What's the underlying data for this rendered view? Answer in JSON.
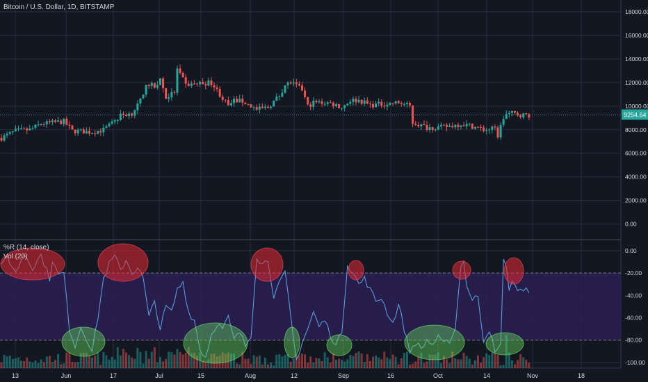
{
  "header": {
    "symbol": "Bitcoin / U.S. Dollar, 1D, BITSTAMP",
    "indicator_wr": "%R (14, close)",
    "indicator_vol": "Vol (20)"
  },
  "colors": {
    "background": "#131722",
    "grid": "#2a2e39",
    "up": "#26a69a",
    "down": "#ef5350",
    "wr_line": "#5b9bd5",
    "band_fill": "#2a1f52",
    "last_price_bg": "#26a69a",
    "axis_text": "#d1d4dc"
  },
  "chart_data": [
    {
      "type": "candlestick",
      "title": "Bitcoin / U.S. Dollar, 1D, BITSTAMP",
      "x_labels": [
        "13",
        "Jun",
        "17",
        "Jul",
        "15",
        "Aug",
        "12",
        "Sep",
        "16",
        "Oct",
        "14",
        "Nov",
        "18"
      ],
      "y_ticks": [
        0,
        2000,
        4000,
        6000,
        8000,
        10000,
        12000,
        14000,
        16000,
        18000
      ],
      "y_tick_labels": [
        "0.00",
        "2000.00",
        "4000.00",
        "6000.00",
        "8000.00",
        "10000.00",
        "12000.00",
        "14000.00",
        "16000.00",
        "18000.00"
      ],
      "ylim": [
        -1200,
        19000
      ],
      "last_price": 9254.64,
      "last_price_label": "9254.64",
      "grid": true,
      "close_keypoints": [
        [
          0,
          7300
        ],
        [
          5,
          7900
        ],
        [
          10,
          8000
        ],
        [
          14,
          8500
        ],
        [
          18,
          8600
        ],
        [
          22,
          8700
        ],
        [
          25,
          7900
        ],
        [
          32,
          7800
        ],
        [
          36,
          8000
        ],
        [
          40,
          8700
        ],
        [
          42,
          9200
        ],
        [
          46,
          9400
        ],
        [
          50,
          10800
        ],
        [
          51,
          12000
        ],
        [
          54,
          11600
        ],
        [
          56,
          12300
        ],
        [
          58,
          10700
        ],
        [
          61,
          11200
        ],
        [
          62,
          13100
        ],
        [
          65,
          11800
        ],
        [
          69,
          11900
        ],
        [
          74,
          12000
        ],
        [
          77,
          11000
        ],
        [
          80,
          10000
        ],
        [
          82,
          10500
        ],
        [
          85,
          10400
        ],
        [
          88,
          10000
        ],
        [
          90,
          9700
        ],
        [
          94,
          9900
        ],
        [
          98,
          10900
        ],
        [
          100,
          11800
        ],
        [
          102,
          12000
        ],
        [
          104,
          11700
        ],
        [
          106,
          11400
        ],
        [
          108,
          10000
        ],
        [
          110,
          10300
        ],
        [
          115,
          10300
        ],
        [
          118,
          10100
        ],
        [
          120,
          9900
        ],
        [
          123,
          10500
        ],
        [
          126,
          10500
        ],
        [
          130,
          10100
        ],
        [
          136,
          10200
        ],
        [
          140,
          10300
        ],
        [
          144,
          10000
        ],
        [
          145,
          8600
        ],
        [
          150,
          8200
        ],
        [
          155,
          8200
        ],
        [
          158,
          8300
        ],
        [
          162,
          8500
        ],
        [
          166,
          8300
        ],
        [
          170,
          8000
        ],
        [
          174,
          8100
        ],
        [
          175,
          7500
        ],
        [
          176,
          8300
        ],
        [
          177,
          9000
        ],
        [
          178,
          9300
        ],
        [
          180,
          9400
        ],
        [
          182,
          9300
        ],
        [
          184,
          9250
        ]
      ],
      "seed": 7
    },
    {
      "type": "line",
      "title": "%R (14, close)",
      "ylim": [
        -105,
        8
      ],
      "y_ticks": [
        0,
        -20,
        -40,
        -60,
        -80,
        -100
      ],
      "y_tick_labels": [
        "0.00",
        "-20.00",
        "-40.00",
        "-60.00",
        "-80.00",
        "-100.00"
      ],
      "band_upper": -20,
      "band_lower": -80,
      "values_keypoints": [
        [
          0,
          -15
        ],
        [
          2,
          -5
        ],
        [
          5,
          -20
        ],
        [
          8,
          -2
        ],
        [
          11,
          -15
        ],
        [
          14,
          -4
        ],
        [
          17,
          -25
        ],
        [
          18,
          -8
        ],
        [
          20,
          -22
        ],
        [
          22,
          -20
        ],
        [
          24,
          -70
        ],
        [
          26,
          -85
        ],
        [
          28,
          -68
        ],
        [
          30,
          -78
        ],
        [
          32,
          -90
        ],
        [
          34,
          -60
        ],
        [
          36,
          -25
        ],
        [
          38,
          -12
        ],
        [
          40,
          -5
        ],
        [
          42,
          -18
        ],
        [
          44,
          -8
        ],
        [
          46,
          -20
        ],
        [
          48,
          -15
        ],
        [
          50,
          -25
        ],
        [
          52,
          -60
        ],
        [
          54,
          -45
        ],
        [
          56,
          -70
        ],
        [
          58,
          -50
        ],
        [
          60,
          -55
        ],
        [
          62,
          -35
        ],
        [
          64,
          -28
        ],
        [
          66,
          -55
        ],
        [
          68,
          -62
        ],
        [
          70,
          -88
        ],
        [
          72,
          -95
        ],
        [
          74,
          -75
        ],
        [
          76,
          -65
        ],
        [
          78,
          -70
        ],
        [
          80,
          -60
        ],
        [
          82,
          -80
        ],
        [
          84,
          -73
        ],
        [
          86,
          -85
        ],
        [
          88,
          -75
        ],
        [
          90,
          -5
        ],
        [
          92,
          -12
        ],
        [
          94,
          -8
        ],
        [
          96,
          -40
        ],
        [
          98,
          -30
        ],
        [
          100,
          -20
        ],
        [
          102,
          -60
        ],
        [
          104,
          -98
        ],
        [
          106,
          -82
        ],
        [
          108,
          -70
        ],
        [
          110,
          -55
        ],
        [
          112,
          -68
        ],
        [
          114,
          -62
        ],
        [
          116,
          -75
        ],
        [
          118,
          -85
        ],
        [
          120,
          -72
        ],
        [
          122,
          -12
        ],
        [
          124,
          -20
        ],
        [
          126,
          -30
        ],
        [
          128,
          -25
        ],
        [
          130,
          -35
        ],
        [
          132,
          -45
        ],
        [
          134,
          -42
        ],
        [
          136,
          -55
        ],
        [
          138,
          -65
        ],
        [
          140,
          -48
        ],
        [
          142,
          -70
        ],
        [
          144,
          -90
        ],
        [
          146,
          -82
        ],
        [
          148,
          -88
        ],
        [
          150,
          -80
        ],
        [
          152,
          -84
        ],
        [
          154,
          -78
        ],
        [
          156,
          -84
        ],
        [
          158,
          -80
        ],
        [
          160,
          -70
        ],
        [
          162,
          -12
        ],
        [
          163,
          -10
        ],
        [
          164,
          -30
        ],
        [
          166,
          -45
        ],
        [
          168,
          -40
        ],
        [
          170,
          -80
        ],
        [
          172,
          -70
        ],
        [
          174,
          -92
        ],
        [
          176,
          -85
        ],
        [
          177,
          -5
        ],
        [
          178,
          -15
        ],
        [
          179,
          -38
        ],
        [
          180,
          -25
        ],
        [
          182,
          -35
        ],
        [
          184,
          -37
        ],
        [
          186,
          -35
        ]
      ],
      "highlights": [
        {
          "cx": 47,
          "cy": 380,
          "rx": 46,
          "ry": 23,
          "color": "red"
        },
        {
          "cx": 177,
          "cy": 378,
          "rx": 36,
          "ry": 27,
          "color": "red"
        },
        {
          "cx": 384,
          "cy": 381,
          "rx": 23,
          "ry": 24,
          "color": "red"
        },
        {
          "cx": 512,
          "cy": 389,
          "rx": 11,
          "ry": 14,
          "color": "red"
        },
        {
          "cx": 664,
          "cy": 389,
          "rx": 13,
          "ry": 13,
          "color": "red"
        },
        {
          "cx": 739,
          "cy": 390,
          "rx": 14,
          "ry": 19,
          "color": "red"
        },
        {
          "cx": 120,
          "cy": 492,
          "rx": 31,
          "ry": 21,
          "color": "green"
        },
        {
          "cx": 310,
          "cy": 494,
          "rx": 46,
          "ry": 29,
          "color": "green"
        },
        {
          "cx": 420,
          "cy": 493,
          "rx": 11,
          "ry": 22,
          "color": "green"
        },
        {
          "cx": 488,
          "cy": 497,
          "rx": 18,
          "ry": 15,
          "color": "green"
        },
        {
          "cx": 625,
          "cy": 493,
          "rx": 43,
          "ry": 25,
          "color": "green"
        },
        {
          "cx": 726,
          "cy": 495,
          "rx": 27,
          "ry": 16,
          "color": "green"
        }
      ]
    }
  ]
}
